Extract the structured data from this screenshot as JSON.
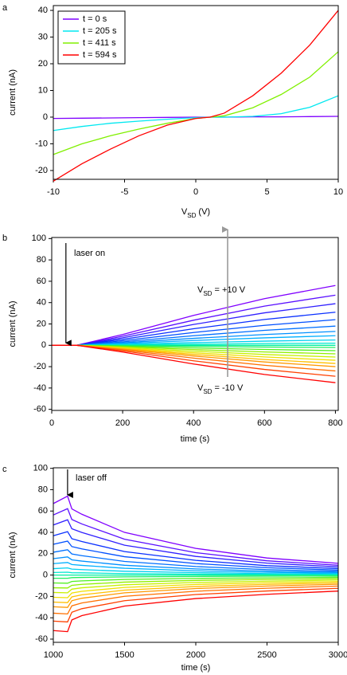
{
  "chart_data": [
    {
      "type": "line",
      "panel_label": "a",
      "ylabel": "current (nA)",
      "xlabel": {
        "main": "V",
        "sub": "SD",
        "rest": " (V)"
      },
      "xlim": [
        -10,
        10
      ],
      "ylim": [
        -23.3,
        41.8
      ],
      "xticks": [
        -10,
        -5,
        0,
        5,
        10
      ],
      "yticks": [
        -20,
        -10,
        0,
        10,
        20,
        30,
        40
      ],
      "legend": "top-left",
      "x": [
        -10,
        -8,
        -6,
        -4,
        -2,
        0,
        1,
        2,
        4,
        6,
        8,
        10
      ],
      "series": [
        {
          "name": "t = 0 s",
          "color": "#7f00ff",
          "values": [
            -0.5,
            -0.4,
            -0.3,
            -0.2,
            -0.1,
            0,
            0,
            0,
            0.1,
            0.1,
            0.2,
            0.3
          ]
        },
        {
          "name": "t = 205 s",
          "color": "#00e8f0",
          "values": [
            -5,
            -3.5,
            -2.3,
            -1.5,
            -0.8,
            -0.2,
            0,
            0,
            0.3,
            1.3,
            3.7,
            8
          ]
        },
        {
          "name": "t = 411 s",
          "color": "#80f000",
          "values": [
            -14,
            -10,
            -7,
            -4.5,
            -2.3,
            -0.5,
            0,
            0.5,
            3.5,
            8.5,
            15,
            24.5
          ]
        },
        {
          "name": "t = 594 s",
          "color": "#ff0000",
          "values": [
            -24,
            -17.5,
            -12,
            -7,
            -3,
            -0.5,
            0,
            1.5,
            8,
            16.5,
            27,
            40
          ]
        }
      ]
    },
    {
      "type": "line",
      "panel_label": "b",
      "ylabel": "current (nA)",
      "xlabel": "time (s)",
      "xlim": [
        0,
        808
      ],
      "ylim": [
        -61,
        101
      ],
      "xticks": [
        0,
        200,
        400,
        600,
        800
      ],
      "yticks": [
        -60,
        -40,
        -20,
        0,
        20,
        40,
        60,
        80,
        100
      ],
      "annotations": [
        {
          "text": "laser on"
        },
        {
          "main": "V",
          "sub": "SD",
          "rest": " = +10 V",
          "color": "#7f00ff"
        },
        {
          "main": "V",
          "sub": "SD",
          "rest": " = -10 V",
          "color": "#ff0000"
        }
      ],
      "x": [
        0,
        40,
        70,
        200,
        400,
        600,
        800
      ],
      "series": [
        {
          "color": "#8000ff",
          "values": [
            0,
            0,
            0,
            10.1,
            28,
            43.7,
            56
          ]
        },
        {
          "color": "#5a10ff",
          "values": [
            0,
            0,
            0,
            8.5,
            23.5,
            36.7,
            47
          ]
        },
        {
          "color": "#3020ff",
          "values": [
            0,
            0,
            0,
            7,
            19.5,
            30.4,
            39
          ]
        },
        {
          "color": "#0a30ff",
          "values": [
            0,
            0,
            0,
            5.6,
            15.5,
            24.2,
            31
          ]
        },
        {
          "color": "#0050ff",
          "values": [
            0,
            0,
            0,
            4.3,
            12,
            18.7,
            24
          ]
        },
        {
          "color": "#0070ff",
          "values": [
            0,
            0,
            0,
            3.2,
            9,
            14,
            18
          ]
        },
        {
          "color": "#0090ff",
          "values": [
            0,
            0,
            0,
            2.3,
            6.5,
            10.1,
            13
          ]
        },
        {
          "color": "#00b0ff",
          "values": [
            0,
            0,
            0,
            1.6,
            4.5,
            7,
            9
          ]
        },
        {
          "color": "#00d0f0",
          "values": [
            0,
            0,
            0,
            0.9,
            2.5,
            3.9,
            5
          ]
        },
        {
          "color": "#00e8d0",
          "values": [
            0,
            0,
            0,
            0.4,
            1,
            1.6,
            2
          ]
        },
        {
          "color": "#00f0a0",
          "values": [
            0,
            0,
            0,
            0,
            0,
            0,
            0
          ]
        },
        {
          "color": "#20f060",
          "values": [
            0,
            0,
            0,
            -0.4,
            -1,
            -1.6,
            -2
          ]
        },
        {
          "color": "#50f020",
          "values": [
            0,
            0,
            0,
            -0.9,
            -2.5,
            -3.9,
            -5
          ]
        },
        {
          "color": "#90f000",
          "values": [
            0,
            0,
            0,
            -1.4,
            -4,
            -6.2,
            -8
          ]
        },
        {
          "color": "#c8f000",
          "values": [
            0,
            0,
            0,
            -2,
            -5.5,
            -8.6,
            -11
          ]
        },
        {
          "color": "#f0e000",
          "values": [
            0,
            0,
            0,
            -2.5,
            -7,
            -10.9,
            -14
          ]
        },
        {
          "color": "#ffc000",
          "values": [
            0,
            0,
            0,
            -3.1,
            -8.5,
            -13.3,
            -17
          ]
        },
        {
          "color": "#ff9800",
          "values": [
            0,
            0,
            0,
            -3.6,
            -10,
            -15.6,
            -20
          ]
        },
        {
          "color": "#ff7000",
          "values": [
            0,
            0,
            0,
            -4.3,
            -12,
            -18.7,
            -24
          ]
        },
        {
          "color": "#ff4000",
          "values": [
            0,
            0,
            0,
            -5.2,
            -14.5,
            -22.6,
            -29
          ]
        },
        {
          "color": "#ff0000",
          "values": [
            0,
            0,
            0,
            -6.3,
            -17.5,
            -27.3,
            -35
          ]
        }
      ]
    },
    {
      "type": "line",
      "panel_label": "c",
      "ylabel": "current (nA)",
      "xlabel": "time (s)",
      "xlim": [
        1000,
        3000
      ],
      "ylim": [
        -63,
        100.5
      ],
      "xticks": [
        1000,
        1500,
        2000,
        2500,
        3000
      ],
      "yticks": [
        -60,
        -40,
        -20,
        0,
        20,
        40,
        60,
        80,
        100
      ],
      "annotations": [
        {
          "text": "laser off"
        }
      ],
      "x": [
        1000,
        1100,
        1130,
        1200,
        1500,
        2000,
        2500,
        3000
      ],
      "series": [
        {
          "color": "#8000ff",
          "values": [
            67,
            74,
            62,
            57,
            40,
            25,
            16,
            11
          ]
        },
        {
          "color": "#5a10ff",
          "values": [
            56.3,
            62.2,
            52.1,
            47.9,
            33.6,
            21,
            13.4,
            9.2
          ]
        },
        {
          "color": "#3020ff",
          "values": [
            46.9,
            51.8,
            43.4,
            39.9,
            28,
            17.5,
            11.2,
            7.7
          ]
        },
        {
          "color": "#0a30ff",
          "values": [
            36.9,
            40.7,
            34.1,
            31.4,
            22,
            13.8,
            8.8,
            6.1
          ]
        },
        {
          "color": "#0050ff",
          "values": [
            28.8,
            31.8,
            26.7,
            24.5,
            17.2,
            10.8,
            6.9,
            4.7
          ]
        },
        {
          "color": "#0070ff",
          "values": [
            21.4,
            23.7,
            19.8,
            18.2,
            12.8,
            8,
            5.1,
            3.5
          ]
        },
        {
          "color": "#0090ff",
          "values": [
            15.4,
            17,
            14.3,
            13.1,
            9.2,
            5.8,
            3.7,
            2.5
          ]
        },
        {
          "color": "#00b0ff",
          "values": [
            10.7,
            11.8,
            9.9,
            9.1,
            6.4,
            4,
            2.6,
            1.8
          ]
        },
        {
          "color": "#00d0f0",
          "values": [
            6,
            6.7,
            5.6,
            5.1,
            3.6,
            2.3,
            1.4,
            1
          ]
        },
        {
          "color": "#00e8d0",
          "values": [
            2.4,
            2.7,
            2.2,
            2.1,
            1.4,
            0.9,
            0.6,
            0.4
          ]
        },
        {
          "color": "#00f0a0",
          "values": [
            0,
            0,
            0,
            0,
            0,
            0,
            0,
            0
          ]
        },
        {
          "color": "#20f060",
          "values": [
            -3,
            -3,
            -2.4,
            -2.2,
            -1.7,
            -1.3,
            -1,
            -0.9
          ]
        },
        {
          "color": "#50f020",
          "values": [
            -7.4,
            -7.6,
            -6,
            -5.4,
            -4.1,
            -3.1,
            -2.6,
            -2.1
          ]
        },
        {
          "color": "#90f000",
          "values": [
            -11.9,
            -12.1,
            -9.6,
            -8.7,
            -6.6,
            -5,
            -4.1,
            -3.4
          ]
        },
        {
          "color": "#c8f000",
          "values": [
            -16.3,
            -16.6,
            -13.2,
            -11.9,
            -9.1,
            -6.9,
            -5.7,
            -4.7
          ]
        },
        {
          "color": "#f0e000",
          "values": [
            -20.8,
            -21.2,
            -16.8,
            -15.2,
            -11.6,
            -8.8,
            -7.2,
            -6
          ]
        },
        {
          "color": "#ffc000",
          "values": [
            -25.3,
            -25.8,
            -20.4,
            -18.5,
            -14.1,
            -10.7,
            -8.7,
            -7.3
          ]
        },
        {
          "color": "#ff9800",
          "values": [
            -29.7,
            -30.3,
            -24,
            -21.7,
            -16.6,
            -12.6,
            -10.3,
            -8.6
          ]
        },
        {
          "color": "#ff7000",
          "values": [
            -35.7,
            -36.4,
            -28.8,
            -26.1,
            -19.9,
            -15.1,
            -12.3,
            -10.3
          ]
        },
        {
          "color": "#ff4000",
          "values": [
            -43.1,
            -43.9,
            -34.8,
            -31.5,
            -24,
            -18.2,
            -14.9,
            -12.4
          ]
        },
        {
          "color": "#ff0000",
          "values": [
            -52,
            -53,
            -42,
            -38,
            -29,
            -22,
            -18,
            -15
          ]
        }
      ]
    }
  ]
}
